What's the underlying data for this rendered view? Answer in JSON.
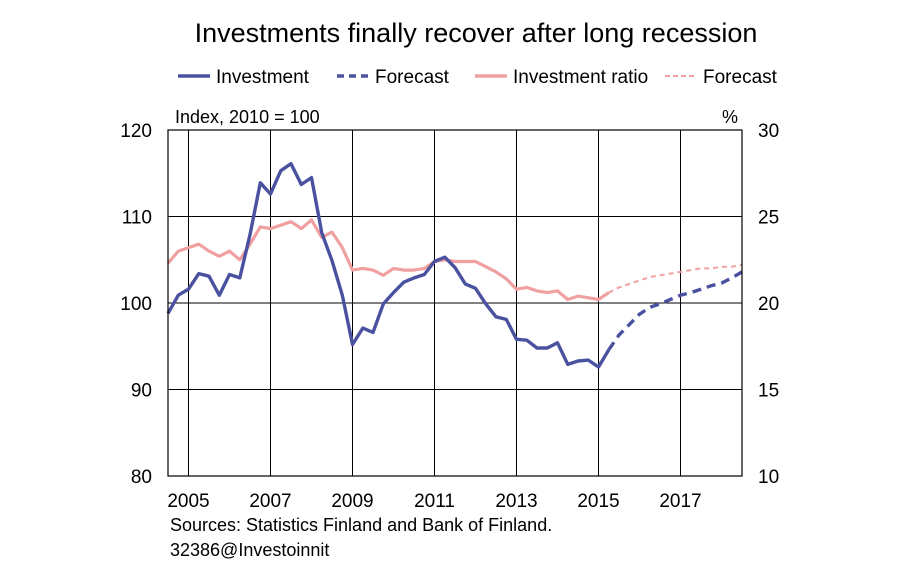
{
  "chart_data": {
    "type": "line",
    "title": "Investments finally recover after long recession",
    "left_axis_label": "Index, 2010 = 100",
    "right_axis_label": "%",
    "x_ticks": [
      "2005",
      "2007",
      "2009",
      "2011",
      "2013",
      "2015",
      "2017"
    ],
    "x_range": [
      2004.5,
      2018.5
    ],
    "left_ylim": [
      80,
      120
    ],
    "left_ticks": [
      "80",
      "90",
      "100",
      "110",
      "120"
    ],
    "right_ylim": [
      10,
      30
    ],
    "right_ticks": [
      "10",
      "15",
      "20",
      "25",
      "30"
    ],
    "grid": true,
    "legend_placement": "top",
    "legend": [
      {
        "label": "Investment",
        "color": "#4a52a0",
        "dash": "solid"
      },
      {
        "label": "Forecast",
        "color": "#4a52a0",
        "dash": "dashed"
      },
      {
        "label": "Investment ratio",
        "color": "#f0a0a0",
        "dash": "solid"
      },
      {
        "label": "Forecast",
        "color": "#f0a0a0",
        "dash": "dashed"
      }
    ],
    "series": [
      {
        "name": "Investment",
        "axis": "left",
        "color": "#4a52a0",
        "dash": "solid",
        "x": [
          2004.5,
          2004.75,
          2005.0,
          2005.25,
          2005.5,
          2005.75,
          2006.0,
          2006.25,
          2006.5,
          2006.75,
          2007.0,
          2007.25,
          2007.5,
          2007.75,
          2008.0,
          2008.25,
          2008.5,
          2008.75,
          2009.0,
          2009.25,
          2009.5,
          2009.75,
          2010.0,
          2010.25,
          2010.5,
          2010.75,
          2011.0,
          2011.25,
          2011.5,
          2011.75,
          2012.0,
          2012.25,
          2012.5,
          2012.75,
          2013.0,
          2013.25,
          2013.5,
          2013.75,
          2014.0,
          2014.25,
          2014.5,
          2014.75,
          2015.0,
          2015.25
        ],
        "values": [
          98.8,
          100.9,
          101.6,
          103.4,
          103.1,
          100.9,
          103.3,
          102.9,
          107.9,
          113.9,
          112.6,
          115.3,
          116.1,
          113.7,
          114.5,
          108.1,
          104.9,
          100.9,
          95.2,
          97.1,
          96.6,
          99.9,
          101.2,
          102.4,
          102.9,
          103.3,
          104.8,
          105.3,
          104.1,
          102.2,
          101.7,
          99.9,
          98.4,
          98.1,
          95.8,
          95.7,
          94.8,
          94.8,
          95.4,
          92.9,
          93.3,
          93.4,
          92.6,
          94.6
        ]
      },
      {
        "name": "Forecast",
        "axis": "left",
        "color": "#4a52a0",
        "dash": "dashed",
        "x": [
          2015.25,
          2015.5,
          2015.75,
          2016.0,
          2016.25,
          2016.5,
          2016.75,
          2017.0,
          2017.25,
          2017.5,
          2017.75,
          2018.0,
          2018.25,
          2018.5
        ],
        "values": [
          94.6,
          96.3,
          97.5,
          98.7,
          99.5,
          99.9,
          100.4,
          100.9,
          101.2,
          101.6,
          102.0,
          102.3,
          102.9,
          103.6
        ]
      },
      {
        "name": "Investment ratio",
        "axis": "right",
        "color": "#f0a0a0",
        "dash": "solid",
        "x": [
          2004.5,
          2004.75,
          2005.0,
          2005.25,
          2005.5,
          2005.75,
          2006.0,
          2006.25,
          2006.5,
          2006.75,
          2007.0,
          2007.25,
          2007.5,
          2007.75,
          2008.0,
          2008.25,
          2008.5,
          2008.75,
          2009.0,
          2009.25,
          2009.5,
          2009.75,
          2010.0,
          2010.25,
          2010.5,
          2010.75,
          2011.0,
          2011.25,
          2011.5,
          2011.75,
          2012.0,
          2012.25,
          2012.5,
          2012.75,
          2013.0,
          2013.25,
          2013.5,
          2013.75,
          2014.0,
          2014.25,
          2014.5,
          2014.75,
          2015.0,
          2015.25
        ],
        "values": [
          22.3,
          23.0,
          23.2,
          23.4,
          23.0,
          22.7,
          23.0,
          22.5,
          23.4,
          24.4,
          24.3,
          24.5,
          24.7,
          24.3,
          24.8,
          23.8,
          24.1,
          23.2,
          21.9,
          22.0,
          21.9,
          21.6,
          22.0,
          21.9,
          21.9,
          22.0,
          22.4,
          22.5,
          22.4,
          22.4,
          22.4,
          22.1,
          21.8,
          21.4,
          20.8,
          20.9,
          20.7,
          20.6,
          20.7,
          20.2,
          20.4,
          20.3,
          20.2,
          20.6
        ]
      },
      {
        "name": "Forecast",
        "axis": "right",
        "color": "#f0a0a0",
        "dash": "dashed",
        "x": [
          2015.25,
          2015.5,
          2015.75,
          2016.0,
          2016.25,
          2016.5,
          2016.75,
          2017.0,
          2017.25,
          2017.5,
          2017.75,
          2018.0,
          2018.25,
          2018.5
        ],
        "values": [
          20.6,
          20.9,
          21.1,
          21.3,
          21.5,
          21.6,
          21.7,
          21.8,
          21.9,
          22.0,
          22.0,
          22.1,
          22.1,
          22.2
        ]
      }
    ]
  },
  "footer": {
    "sources": "Sources: Statistics Finland and Bank of Finland.",
    "code": "32386@Investoinnit"
  }
}
